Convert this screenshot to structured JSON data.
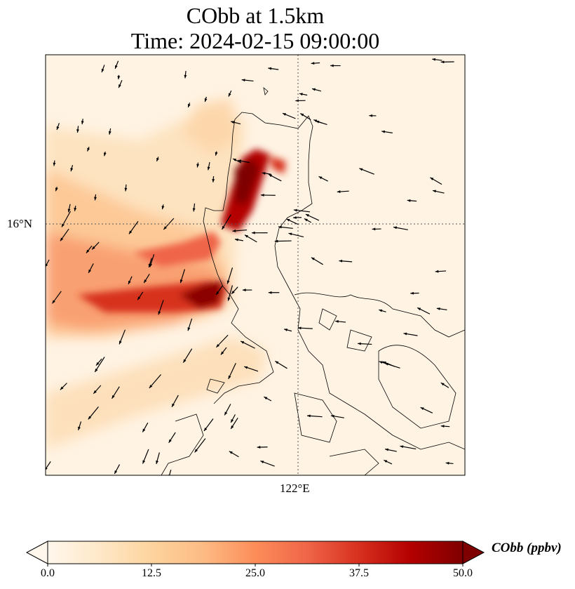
{
  "title": {
    "line1": "CObb at 1.5km",
    "line2": "Time: 2024-02-15 09:00:00"
  },
  "axes": {
    "lat_label": "16°N",
    "lon_label": "122°E"
  },
  "colorbar": {
    "label": "CObb (ppbv)",
    "ticks": [
      "0.0",
      "12.5",
      "25.0",
      "37.5",
      "50.0"
    ],
    "range": [
      0,
      50
    ],
    "colors": [
      "#fff7ec",
      "#fee8c8",
      "#fdd49e",
      "#fdbb84",
      "#fc8d59",
      "#ef6548",
      "#d7301f",
      "#b30000",
      "#7f0000"
    ]
  }
}
